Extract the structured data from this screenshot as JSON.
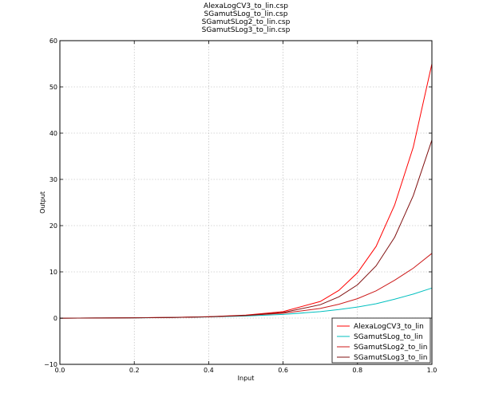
{
  "chart_data": {
    "type": "line",
    "title_lines": [
      "AlexaLogCV3_to_lin.csp",
      "SGamutSLog_to_lin.csp",
      "SGamutSLog2_to_lin.csp",
      "SGamutSLog3_to_lin.csp"
    ],
    "xlabel": "Input",
    "ylabel": "Output",
    "xlim": [
      0,
      1
    ],
    "ylim": [
      -10,
      60
    ],
    "xticks": [
      0.0,
      0.2,
      0.4,
      0.6,
      0.8,
      1.0
    ],
    "xtick_labels": [
      "0.0",
      "0.2",
      "0.4",
      "0.6",
      "0.8",
      "1.0"
    ],
    "yticks": [
      -10,
      0,
      10,
      20,
      30,
      40,
      50,
      60
    ],
    "ytick_labels": [
      "−10",
      "0",
      "10",
      "20",
      "30",
      "40",
      "50",
      "60"
    ],
    "grid": true,
    "legend_position": "lower-right",
    "x": [
      0.0,
      0.1,
      0.2,
      0.3,
      0.4,
      0.5,
      0.6,
      0.7,
      0.75,
      0.8,
      0.85,
      0.9,
      0.95,
      1.0
    ],
    "series": [
      {
        "name": "AlexaLogCV3_to_lin",
        "color": "#ff0000",
        "values": [
          -0.02,
          0.02,
          0.06,
          0.15,
          0.3,
          0.65,
          1.4,
          3.6,
          6.0,
          9.8,
          15.5,
          24.5,
          37.0,
          55.0
        ]
      },
      {
        "name": "SGamutSLog_to_lin",
        "color": "#00bfbf",
        "values": [
          -0.02,
          0.02,
          0.05,
          0.12,
          0.25,
          0.45,
          0.8,
          1.4,
          1.85,
          2.4,
          3.1,
          4.1,
          5.2,
          6.5
        ]
      },
      {
        "name": "SGamutSLog2_to_lin",
        "color": "#cc1a1a",
        "values": [
          -0.02,
          0.02,
          0.06,
          0.14,
          0.28,
          0.55,
          1.05,
          2.1,
          3.0,
          4.2,
          5.9,
          8.2,
          10.8,
          14.0
        ]
      },
      {
        "name": "SGamutSLog3_to_lin",
        "color": "#801010",
        "values": [
          -0.02,
          0.02,
          0.06,
          0.14,
          0.28,
          0.58,
          1.2,
          2.9,
          4.6,
          7.2,
          11.3,
          17.5,
          26.5,
          38.5
        ]
      }
    ]
  }
}
